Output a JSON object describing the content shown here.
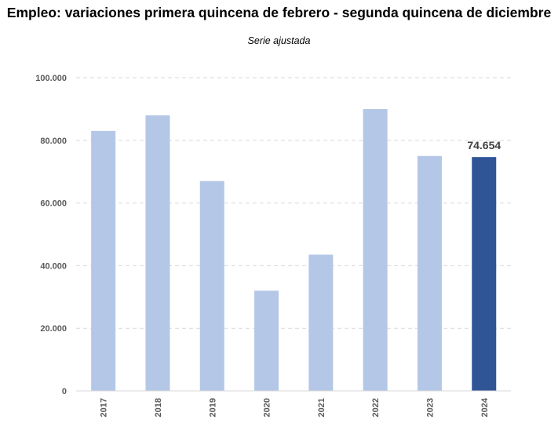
{
  "chart_data": {
    "type": "bar",
    "title": "Empleo: variaciones primera quincena de febrero - segunda quincena de diciembre",
    "subtitle": "Serie ajustada",
    "xlabel": "",
    "ylabel": "",
    "categories": [
      "2017",
      "2018",
      "2019",
      "2020",
      "2021",
      "2022",
      "2023",
      "2024"
    ],
    "values": [
      83000,
      88000,
      67000,
      32000,
      43500,
      90000,
      75000,
      74654
    ],
    "ylim": [
      0,
      100000
    ],
    "yticks": [
      0,
      20000,
      40000,
      60000,
      80000,
      100000
    ],
    "ytick_labels": [
      "0",
      "20.000",
      "40.000",
      "60.000",
      "80.000",
      "100.000"
    ],
    "data_labels": [
      {
        "category": "2024",
        "text": "74.654"
      }
    ],
    "grid": true,
    "legend": "none",
    "colors": {
      "bar": "#b4c7e7",
      "highlight": "#2f5597",
      "grid": "#d9d9d9",
      "axis": "#d9d9d9"
    },
    "highlight_index": 7
  }
}
